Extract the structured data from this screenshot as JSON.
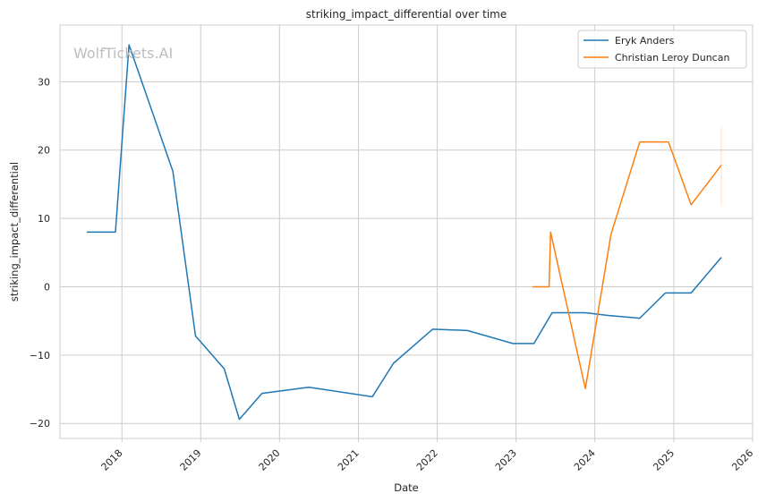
{
  "chart_data": {
    "type": "line",
    "title": "striking_impact_differential over time",
    "xlabel": "Date",
    "ylabel": "striking_impact_differential",
    "watermark": "WolfTickets.AI",
    "x_ticks": [
      "2018",
      "2019",
      "2020",
      "2021",
      "2022",
      "2023",
      "2024",
      "2025",
      "2026"
    ],
    "y_ticks": [
      "−20",
      "−10",
      "0",
      "10",
      "20",
      "30"
    ],
    "xlim": [
      "2017-03-20",
      "2026-01-01"
    ],
    "ylim": [
      -22.2,
      38.3
    ],
    "grid": true,
    "legend_position": "top-right",
    "series": [
      {
        "name": "Eryk Anders",
        "color": "#1f77b4",
        "points": [
          [
            "2017-07-22",
            8.0
          ],
          [
            "2017-12-02",
            8.0
          ],
          [
            "2018-02-03",
            35.4
          ],
          [
            "2018-08-25",
            16.9
          ],
          [
            "2018-12-08",
            -7.2
          ],
          [
            "2019-04-20",
            -12.0
          ],
          [
            "2019-06-29",
            -19.4
          ],
          [
            "2019-10-12",
            -15.6
          ],
          [
            "2020-05-16",
            -14.7
          ],
          [
            "2021-03-06",
            -16.1
          ],
          [
            "2021-06-12",
            -11.2
          ],
          [
            "2021-12-11",
            -6.2
          ],
          [
            "2022-05-21",
            -6.4
          ],
          [
            "2022-12-17",
            -8.3
          ],
          [
            "2023-03-25",
            -8.3
          ],
          [
            "2023-06-17",
            -3.8
          ],
          [
            "2023-11-18",
            -3.8
          ],
          [
            "2024-03-02",
            -4.2
          ],
          [
            "2024-07-27",
            -4.6
          ],
          [
            "2024-11-23",
            -0.9
          ],
          [
            "2025-03-22",
            -0.9
          ],
          [
            "2025-08-09",
            4.3
          ]
        ]
      },
      {
        "name": "Christian Leroy Duncan",
        "color": "#ff7f0e",
        "points": [
          [
            "2023-03-18",
            0.0
          ],
          [
            "2023-06-03",
            0.0
          ],
          [
            "2023-06-10",
            8.0
          ],
          [
            "2023-11-18",
            -14.9
          ],
          [
            "2024-03-16",
            7.7
          ],
          [
            "2024-07-27",
            21.2
          ],
          [
            "2024-12-07",
            21.2
          ],
          [
            "2025-03-22",
            12.0
          ],
          [
            "2025-08-09",
            17.8
          ]
        ]
      }
    ]
  }
}
